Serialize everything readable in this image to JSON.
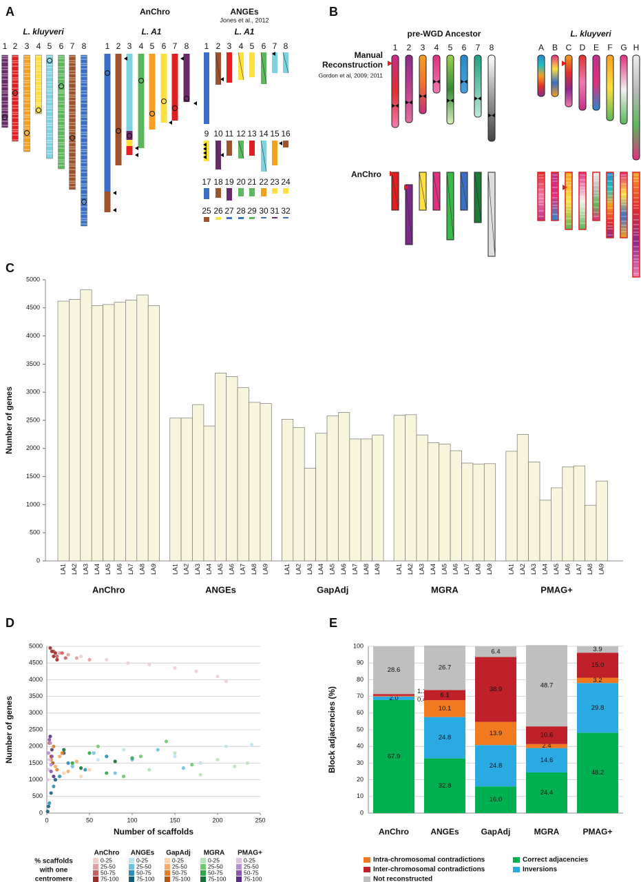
{
  "panel_labels": [
    "A",
    "B",
    "C",
    "D",
    "E"
  ],
  "panel_a": {
    "titles": [
      "AnChro",
      "ANGEs"
    ],
    "citation": "Jones et al., 2012",
    "genomes": [
      "L. kluyveri",
      "L. A1",
      "L. A1"
    ],
    "kluyveri_chromosomes": [
      "1",
      "2",
      "3",
      "4",
      "5",
      "6",
      "7",
      "8"
    ],
    "anchro_chromosomes": [
      "1",
      "2",
      "3",
      "4",
      "5",
      "6",
      "7",
      "8"
    ],
    "anges_chromosomes": [
      "1",
      "2",
      "3",
      "4",
      "5",
      "6",
      "7",
      "8",
      "9",
      "10",
      "11",
      "12",
      "13",
      "14",
      "15",
      "16",
      "17",
      "18",
      "19",
      "20",
      "21",
      "22",
      "23",
      "24",
      "25",
      "26",
      "27",
      "28",
      "29",
      "30",
      "31",
      "32"
    ]
  },
  "panel_b": {
    "title_left": "pre-WGD Ancestor",
    "title_right": "L. kluyveri",
    "manual_label": [
      "Manual",
      "Reconstruction"
    ],
    "citation": "Gordon et al, 2009; 2011",
    "anchro_label": "AnChro",
    "ancestor_chromosomes": [
      "1",
      "2",
      "3",
      "4",
      "5",
      "6",
      "7",
      "8"
    ],
    "kluyveri_chromosomes": [
      "A",
      "B",
      "C",
      "D",
      "E",
      "F",
      "G",
      "H"
    ]
  },
  "chart_data": [
    {
      "type": "bar",
      "ylabel": "Number of genes",
      "ylim": [
        0,
        5000
      ],
      "yticks": [
        0,
        500,
        1000,
        1500,
        2000,
        2500,
        3000,
        3500,
        4000,
        4500,
        5000
      ],
      "color": "#f7f5dc",
      "groups": [
        {
          "name": "AnChro",
          "categories": [
            "LA1",
            "LA2",
            "LA3",
            "LA4",
            "LA5",
            "LA6",
            "LA7",
            "LA8",
            "LA9"
          ],
          "values": [
            4620,
            4650,
            4820,
            4540,
            4560,
            4600,
            4640,
            4730,
            4540
          ]
        },
        {
          "name": "ANGEs",
          "categories": [
            "LA1",
            "LA2",
            "LA3",
            "LA4",
            "LA5",
            "LA6",
            "LA7",
            "LA8",
            "LA9"
          ],
          "values": [
            2540,
            2540,
            2780,
            2400,
            3340,
            3280,
            3080,
            2820,
            2800
          ]
        },
        {
          "name": "GapAdj",
          "categories": [
            "LA1",
            "LA2",
            "LA3",
            "LA4",
            "LA5",
            "LA6",
            "LA7",
            "LA8",
            "LA9"
          ],
          "values": [
            2520,
            2370,
            1650,
            2270,
            2580,
            2640,
            2170,
            2170,
            2240
          ]
        },
        {
          "name": "MGRA",
          "categories": [
            "LA1",
            "LA2",
            "LA3",
            "LA4",
            "LA5",
            "LA6",
            "LA7",
            "LA8",
            "LA9"
          ],
          "values": [
            2590,
            2600,
            2240,
            2100,
            2080,
            1960,
            1740,
            1720,
            1730
          ]
        },
        {
          "name": "PMAG+",
          "categories": [
            "LA1",
            "LA2",
            "LA3",
            "LA4",
            "LA5",
            "LA6",
            "LA7",
            "LA8",
            "LA9"
          ],
          "values": [
            1950,
            2250,
            1760,
            1080,
            1300,
            1670,
            1690,
            990,
            1420
          ]
        }
      ]
    },
    {
      "type": "scatter",
      "xlabel": "Number of scaffolds",
      "ylabel": "Number of genes",
      "xlim": [
        0,
        250
      ],
      "xticks": [
        0,
        50,
        100,
        150,
        200,
        250
      ],
      "ylim": [
        0,
        5000
      ],
      "yticks": [
        0,
        500,
        1000,
        1500,
        2000,
        2500,
        3000,
        3500,
        4000,
        4500,
        5000
      ],
      "grid": true,
      "legend_title": [
        "% scaffolds",
        "with one",
        "centromere"
      ],
      "groups": [
        {
          "name": "AnChro",
          "series": [
            {
              "name": "0-25",
              "color": "#f2cfcf",
              "x": [
                40,
                70,
                95,
                120,
                150,
                175,
                200,
                210
              ],
              "values": [
                4700,
                4600,
                4500,
                4450,
                4350,
                4250,
                4100,
                3950
              ]
            },
            {
              "name": "25-50",
              "color": "#e0a0a0",
              "x": [
                15,
                25,
                35,
                50
              ],
              "values": [
                4800,
                4750,
                4650,
                4600
              ]
            },
            {
              "name": "50-75",
              "color": "#c86060",
              "x": [
                8,
                12,
                18,
                22
              ],
              "values": [
                4850,
                4700,
                4800,
                4650
              ]
            },
            {
              "name": "75-100",
              "color": "#9e2a2a",
              "x": [
                4,
                6,
                8,
                10,
                12
              ],
              "values": [
                4950,
                4850,
                4700,
                4800,
                4600
              ]
            }
          ]
        },
        {
          "name": "ANGEs",
          "series": [
            {
              "name": "0-25",
              "color": "#bfe3f0",
              "x": [
                60,
                90,
                120,
                150,
                180,
                210,
                240
              ],
              "values": [
                1600,
                1900,
                1300,
                1700,
                1500,
                2000,
                2050
              ]
            },
            {
              "name": "25-50",
              "color": "#6cc0e0",
              "x": [
                30,
                55,
                80,
                100,
                130,
                160
              ],
              "values": [
                1400,
                1800,
                1200,
                1600,
                1900,
                1350
              ]
            },
            {
              "name": "50-75",
              "color": "#2b8fb5",
              "x": [
                3,
                8,
                15,
                25,
                45,
                70
              ],
              "values": [
                300,
                800,
                1100,
                1500,
                1300,
                1700
              ]
            },
            {
              "name": "75-100",
              "color": "#1a5f7a",
              "x": [
                1,
                2,
                5,
                10,
                20
              ],
              "values": [
                50,
                200,
                600,
                1000,
                1800
              ]
            }
          ]
        },
        {
          "name": "GapAdj",
          "series": [
            {
              "name": "0-25",
              "color": "#fbd3ae",
              "x": [
                20,
                30,
                40,
                50
              ],
              "values": [
                1200,
                1500,
                1100,
                1300
              ]
            },
            {
              "name": "25-50",
              "color": "#f6aa66",
              "x": [
                10,
                15,
                25,
                35
              ],
              "values": [
                1400,
                1700,
                1250,
                1550
              ]
            },
            {
              "name": "50-75",
              "color": "#e57c2a",
              "x": [
                5,
                8,
                12,
                18
              ],
              "values": [
                1600,
                2000,
                1300,
                1800
              ]
            },
            {
              "name": "75-100",
              "color": "#b35412",
              "x": [
                3,
                5,
                7
              ],
              "values": [
                2100,
                1700,
                1500
              ]
            }
          ]
        },
        {
          "name": "MGRA",
          "series": [
            {
              "name": "0-25",
              "color": "#b8e3b8",
              "x": [
                120,
                150,
                180,
                200,
                220,
                235
              ],
              "values": [
                1300,
                1800,
                1150,
                1600,
                1400,
                1500
              ]
            },
            {
              "name": "25-50",
              "color": "#6ccb6c",
              "x": [
                60,
                90,
                110,
                140,
                170
              ],
              "values": [
                2000,
                1100,
                1700,
                2150,
                1450
              ]
            },
            {
              "name": "50-75",
              "color": "#2ea64a",
              "x": [
                30,
                50,
                70,
                100
              ],
              "values": [
                1500,
                1800,
                1200,
                1650
              ]
            },
            {
              "name": "75-100",
              "color": "#16703a",
              "x": [
                20,
                40,
                80
              ],
              "values": [
                1900,
                1350,
                1550
              ]
            }
          ]
        },
        {
          "name": "PMAG+",
          "series": [
            {
              "name": "0-25",
              "color": "#ddc4e6",
              "x": [
                1,
                2,
                3
              ],
              "values": [
                1000,
                1300,
                1600
              ]
            },
            {
              "name": "25-50",
              "color": "#b88fd0",
              "x": [
                2,
                4,
                5
              ],
              "values": [
                1800,
                2100,
                1450
              ]
            },
            {
              "name": "50-75",
              "color": "#8a55b5",
              "x": [
                3,
                5,
                6
              ],
              "values": [
                2200,
                1250,
                1700
              ]
            },
            {
              "name": "75-100",
              "color": "#5c2d8a",
              "x": [
                4,
                6,
                8
              ],
              "values": [
                2300,
                1900,
                1100
              ]
            }
          ]
        }
      ]
    },
    {
      "type": "stacked_bar",
      "ylabel": "Block adjacencies (%)",
      "ylim": [
        0,
        100
      ],
      "yticks": [
        0,
        10,
        20,
        30,
        40,
        50,
        60,
        70,
        80,
        90,
        100
      ],
      "grid": true,
      "categories": [
        "AnChro",
        "ANGEs",
        "GapAdj",
        "MGRA",
        "PMAG+"
      ],
      "series": [
        {
          "name": "Correct adjacencies",
          "color": "#00b050",
          "values": [
            67.9,
            32.8,
            16.0,
            24.4,
            48.2
          ],
          "value_labels": [
            "67.9",
            "32.8",
            "16.0",
            "24.4",
            "48.2"
          ]
        },
        {
          "name": "Inversions",
          "color": "#2aaae2",
          "values": [
            2.0,
            24.8,
            24.8,
            14.6,
            29.8
          ],
          "value_labels": [
            "2.0",
            "24.8",
            "24.8",
            "14.6",
            "29.8"
          ]
        },
        {
          "name": "Intra-chromosomal contradictions",
          "color": "#f07a20",
          "values": [
            0.4,
            10.1,
            13.9,
            2.4,
            3.2
          ],
          "value_labels": [
            "0.4",
            "10.1",
            "13.9",
            "2.4",
            "3.2"
          ]
        },
        {
          "name": "Inter-chromosomal contradictions",
          "color": "#c0202a",
          "values": [
            1.1,
            6.1,
            38.9,
            10.6,
            15.0
          ],
          "value_labels": [
            "1.1",
            "6.1",
            "38.9",
            "10.6",
            "15.0"
          ]
        },
        {
          "name": "Not reconstructed",
          "color": "#bfbfbf",
          "values": [
            28.6,
            26.7,
            6.4,
            48.7,
            3.9
          ],
          "value_labels": [
            "28.6",
            "26.7",
            "6.4",
            "48.7",
            "3.9"
          ]
        }
      ]
    }
  ]
}
